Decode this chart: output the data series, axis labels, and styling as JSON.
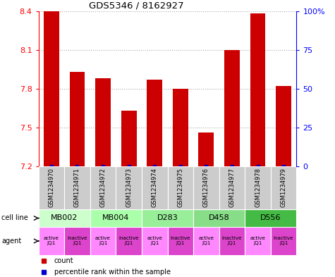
{
  "title": "GDS5346 / 8162927",
  "samples": [
    "GSM1234970",
    "GSM1234971",
    "GSM1234972",
    "GSM1234973",
    "GSM1234974",
    "GSM1234975",
    "GSM1234976",
    "GSM1234977",
    "GSM1234978",
    "GSM1234979"
  ],
  "count_values": [
    8.4,
    7.93,
    7.88,
    7.63,
    7.87,
    7.8,
    7.46,
    8.1,
    8.38,
    7.82
  ],
  "ylim": [
    7.2,
    8.4
  ],
  "yticks": [
    7.2,
    7.5,
    7.8,
    8.1,
    8.4
  ],
  "right_yticks": [
    0,
    25,
    50,
    75,
    100
  ],
  "right_ylabels": [
    "0",
    "25",
    "50",
    "75",
    "100%"
  ],
  "cell_lines": [
    {
      "label": "MB002",
      "cols": [
        0,
        1
      ],
      "color": "#ccffcc"
    },
    {
      "label": "MB004",
      "cols": [
        2,
        3
      ],
      "color": "#aaffaa"
    },
    {
      "label": "D283",
      "cols": [
        4,
        5
      ],
      "color": "#99ee99"
    },
    {
      "label": "D458",
      "cols": [
        6,
        7
      ],
      "color": "#88dd88"
    },
    {
      "label": "D556",
      "cols": [
        8,
        9
      ],
      "color": "#44bb44"
    }
  ],
  "agents": [
    "active\nJQ1",
    "inactive\nJQ1",
    "active\nJQ1",
    "inactive\nJQ1",
    "active\nJQ1",
    "inactive\nJQ1",
    "active\nJQ1",
    "inactive\nJQ1",
    "active\nJQ1",
    "inactive\nJQ1"
  ],
  "bar_color": "#cc0000",
  "percentile_color": "#0000cc",
  "sample_box_color": "#cccccc",
  "grid_color": "#aaaaaa",
  "active_agent_color": "#ff88ff",
  "inactive_agent_color": "#dd44cc"
}
